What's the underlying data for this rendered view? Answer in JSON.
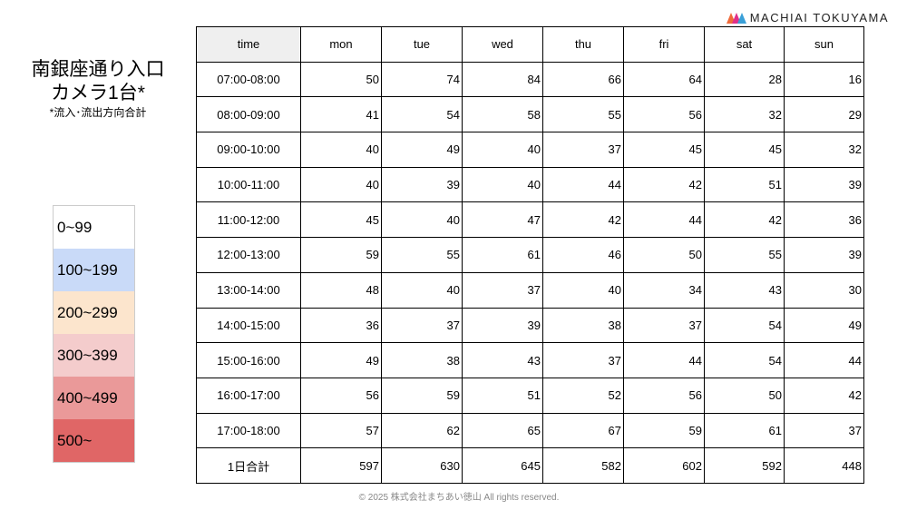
{
  "title": {
    "line1": "南銀座通り入口",
    "line2": "カメラ1台*",
    "note": "*流入･流出方向合計"
  },
  "logo": {
    "text": "MACHIAI TOKUYAMA"
  },
  "legend": [
    {
      "label": "0~99",
      "color": "#ffffff"
    },
    {
      "label": "100~199",
      "color": "#c9daf8"
    },
    {
      "label": "200~299",
      "color": "#fce5cd"
    },
    {
      "label": "300~399",
      "color": "#f4cccc"
    },
    {
      "label": "400~499",
      "color": "#ea9999"
    },
    {
      "label": "500~",
      "color": "#e06666"
    }
  ],
  "table": {
    "headers": [
      "time",
      "mon",
      "tue",
      "wed",
      "thu",
      "fri",
      "sat",
      "sun"
    ],
    "rows": [
      [
        "07:00-08:00",
        "50",
        "74",
        "84",
        "66",
        "64",
        "28",
        "16"
      ],
      [
        "08:00-09:00",
        "41",
        "54",
        "58",
        "55",
        "56",
        "32",
        "29"
      ],
      [
        "09:00-10:00",
        "40",
        "49",
        "40",
        "37",
        "45",
        "45",
        "32"
      ],
      [
        "10:00-11:00",
        "40",
        "39",
        "40",
        "44",
        "42",
        "51",
        "39"
      ],
      [
        "11:00-12:00",
        "45",
        "40",
        "47",
        "42",
        "44",
        "42",
        "36"
      ],
      [
        "12:00-13:00",
        "59",
        "55",
        "61",
        "46",
        "50",
        "55",
        "39"
      ],
      [
        "13:00-14:00",
        "48",
        "40",
        "37",
        "40",
        "34",
        "43",
        "30"
      ],
      [
        "14:00-15:00",
        "36",
        "37",
        "39",
        "38",
        "37",
        "54",
        "49"
      ],
      [
        "15:00-16:00",
        "49",
        "38",
        "43",
        "37",
        "44",
        "54",
        "44"
      ],
      [
        "16:00-17:00",
        "56",
        "59",
        "51",
        "52",
        "56",
        "50",
        "42"
      ],
      [
        "17:00-18:00",
        "57",
        "62",
        "65",
        "67",
        "59",
        "61",
        "37"
      ],
      [
        "1日合計",
        "597",
        "630",
        "645",
        "582",
        "602",
        "592",
        "448"
      ]
    ]
  },
  "footer": "© 2025 株式会社まちあい徳山  All rights reserved."
}
